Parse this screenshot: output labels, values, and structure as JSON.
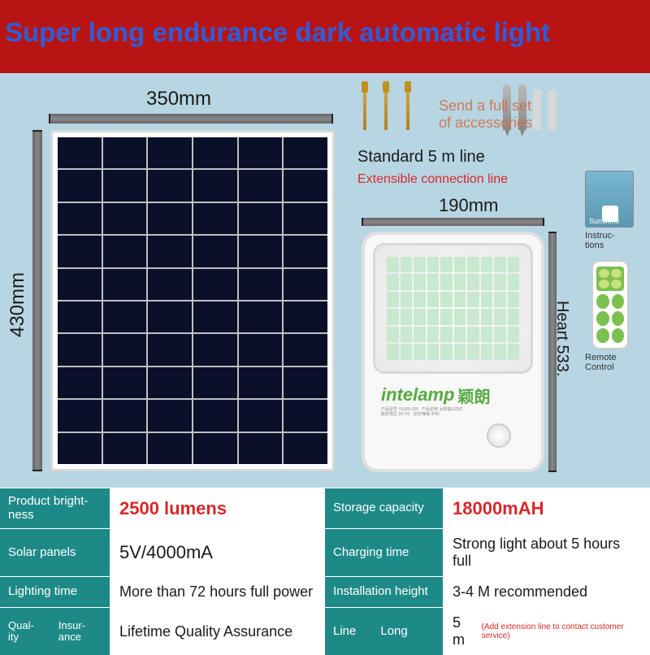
{
  "banner": {
    "text": "Super long endurance dark automatic light",
    "bg": "#b81414",
    "color": "#2f5dd8"
  },
  "main_bg": "#b7d5e3",
  "panel": {
    "width_label": "350mm",
    "height_label": "430mm",
    "cols": 6,
    "rows": 10,
    "cell_color": "#0a0f2a"
  },
  "accessories": {
    "text": "Send a full set\nof accessories",
    "text_color": "#d46a3c"
  },
  "lines": {
    "standard": "Standard 5 m line",
    "extensible": "Extensible connection line",
    "ext_color": "#d82828"
  },
  "lamp": {
    "width_label": "190mm",
    "height_label": "Heart 533.",
    "brand": "intelamp",
    "brand_cn": "颖朗",
    "brand_color": "#55aa40",
    "led_cols": 10,
    "led_rows": 6
  },
  "side": {
    "sunshine": "Sunshine",
    "instructions": "Instruc-\ntions",
    "remote": "Remote\nControl"
  },
  "specs": {
    "teal": "#1e8a88",
    "rows": [
      {
        "l1": "Product bright-\nness",
        "v1": "2500 lumens",
        "v1_red": true,
        "l2": "Storage capacity",
        "v2": "18000mAH",
        "v2_red": true,
        "v2_big": true
      },
      {
        "l1": "Solar panels",
        "v1": "5V/4000mA",
        "l2": "Charging time",
        "v2": "Strong light about 5 hours full"
      },
      {
        "l1": "Lighting time",
        "v1": "More than 72 hours full power",
        "l2": "Installation height",
        "v2": "3-4 M recommended"
      },
      {
        "l1a": "Qual-\nity",
        "l1b": "Insur-\nance",
        "v1": "Lifetime Quality Assurance",
        "l2a": "Line",
        "l2b": "Long",
        "v2": "5 m",
        "v2_fine": "(Add extension line to contact customer service)"
      }
    ]
  }
}
